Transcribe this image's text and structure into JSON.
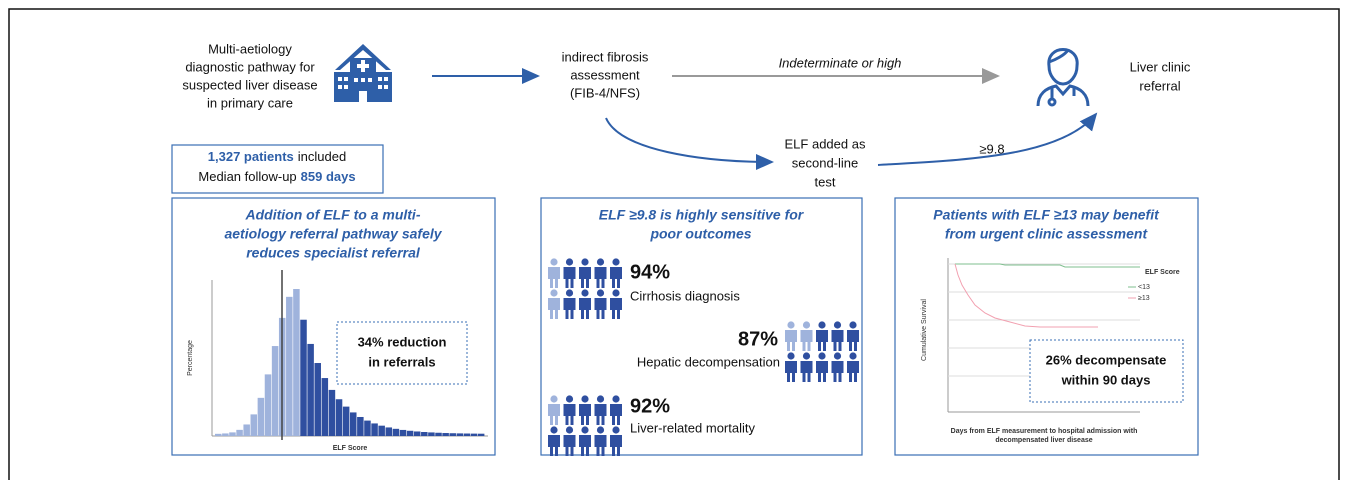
{
  "pathway": {
    "start": [
      "Multi-aetiology",
      "diagnostic pathway for",
      "suspected liver disease",
      "in primary care"
    ],
    "assessment": [
      "indirect fibrosis",
      "assessment",
      "(FIB-4/NFS)"
    ],
    "gray_arrow_label": "Indeterminate or high",
    "referral": [
      "Liver clinic",
      "referral"
    ],
    "elf": [
      "ELF added as",
      "second-line",
      "test"
    ],
    "elf_arrow_label": "≥9.8"
  },
  "summary": {
    "line1": {
      "highlight": "1,327 patients",
      "text": "included"
    },
    "line2": {
      "text": "Median follow-up",
      "highlight": "859 days"
    }
  },
  "panels": [
    {
      "title": [
        "Addition of ELF to a multi-",
        "aetiology referral pathway safely",
        "reduces specialist referral"
      ],
      "y_label": "Percentage",
      "x_label": "ELF Score",
      "callout": [
        "34% reduction",
        "in referrals"
      ]
    },
    {
      "title": [
        "ELF ≥9.8 is highly sensitive for",
        "poor outcomes"
      ],
      "items": [
        {
          "value": "94%",
          "label": "Cirrhosis diagnosis"
        },
        {
          "value": "87%",
          "label": "Hepatic decompensation"
        },
        {
          "value": "92%",
          "label": "Liver-related mortality"
        }
      ]
    },
    {
      "title": [
        "Patients with ELF ≥13 may benefit",
        "from urgent clinic assessment"
      ],
      "y_label": "Cumulative Survival",
      "legend_title": "ELF Score",
      "legend": [
        "<13",
        "≥13"
      ],
      "x_label": [
        "Days from ELF measurement to hospital admission with",
        "decompensated liver disease"
      ],
      "callout": [
        "26% decompensate",
        "within 90 days"
      ]
    }
  ]
}
